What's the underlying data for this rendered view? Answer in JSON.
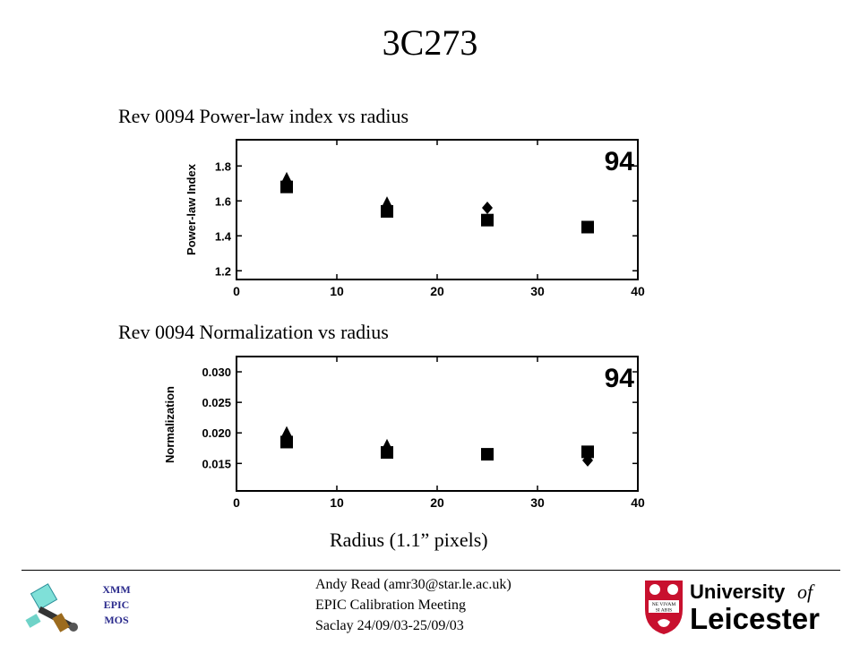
{
  "slide": {
    "title": "3C273",
    "caption_top": "Rev 0094 Power-law index vs radius",
    "caption_bottom": "Rev 0094 Normalization vs radius",
    "xaxis_caption": "Radius (1.1” pixels)"
  },
  "footer": {
    "line1": "Andy Read (amr30@star.le.ac.uk)",
    "line2": "EPIC Calibration Meeting",
    "line3": "Saclay 24/09/03-25/09/03"
  },
  "logo_left": {
    "line1": "XMM",
    "line2": "EPIC",
    "line3": "MOS"
  },
  "logo_right": {
    "line1": "University",
    "line2": "of",
    "line3": "Leicester",
    "motto_1": "NE VIVAM",
    "motto_2": "SI ABIS",
    "brand_color": "#c8102e"
  },
  "chart_data": [
    {
      "type": "scatter",
      "title": "Rev 0094 Power-law index vs radius",
      "ylabel": "Power-law Index",
      "xlabel": "Radius (1.1” pixels)",
      "annotation": "94",
      "xlim": [
        0,
        40
      ],
      "ylim": [
        1.15,
        1.95
      ],
      "xticks": [
        "0",
        "10",
        "20",
        "30",
        "40"
      ],
      "yticks": [
        "1.2",
        "1.4",
        "1.6",
        "1.8"
      ],
      "series": [
        {
          "marker": "square",
          "x": [
            5,
            15,
            25,
            35
          ],
          "y": [
            1.68,
            1.54,
            1.49,
            1.45
          ]
        },
        {
          "marker": "triangle",
          "x": [
            5,
            15
          ],
          "y": [
            1.72,
            1.58
          ]
        },
        {
          "marker": "diamond",
          "x": [
            25
          ],
          "y": [
            1.56
          ]
        }
      ]
    },
    {
      "type": "scatter",
      "title": "Rev 0094 Normalization vs radius",
      "ylabel": "Normalization",
      "xlabel": "Radius (1.1” pixels)",
      "annotation": "94",
      "xlim": [
        0,
        40
      ],
      "ylim": [
        0.0105,
        0.0325
      ],
      "xticks": [
        "0",
        "10",
        "20",
        "30",
        "40"
      ],
      "yticks": [
        "0.030",
        "0.025",
        "0.020",
        "0.015"
      ],
      "series": [
        {
          "marker": "square",
          "x": [
            5,
            15,
            25,
            35
          ],
          "y": [
            0.0185,
            0.0168,
            0.0165,
            0.0169
          ]
        },
        {
          "marker": "triangle",
          "x": [
            5,
            15
          ],
          "y": [
            0.0198,
            0.0177
          ]
        },
        {
          "marker": "diamond",
          "x": [
            35
          ],
          "y": [
            0.0155
          ]
        }
      ]
    }
  ]
}
